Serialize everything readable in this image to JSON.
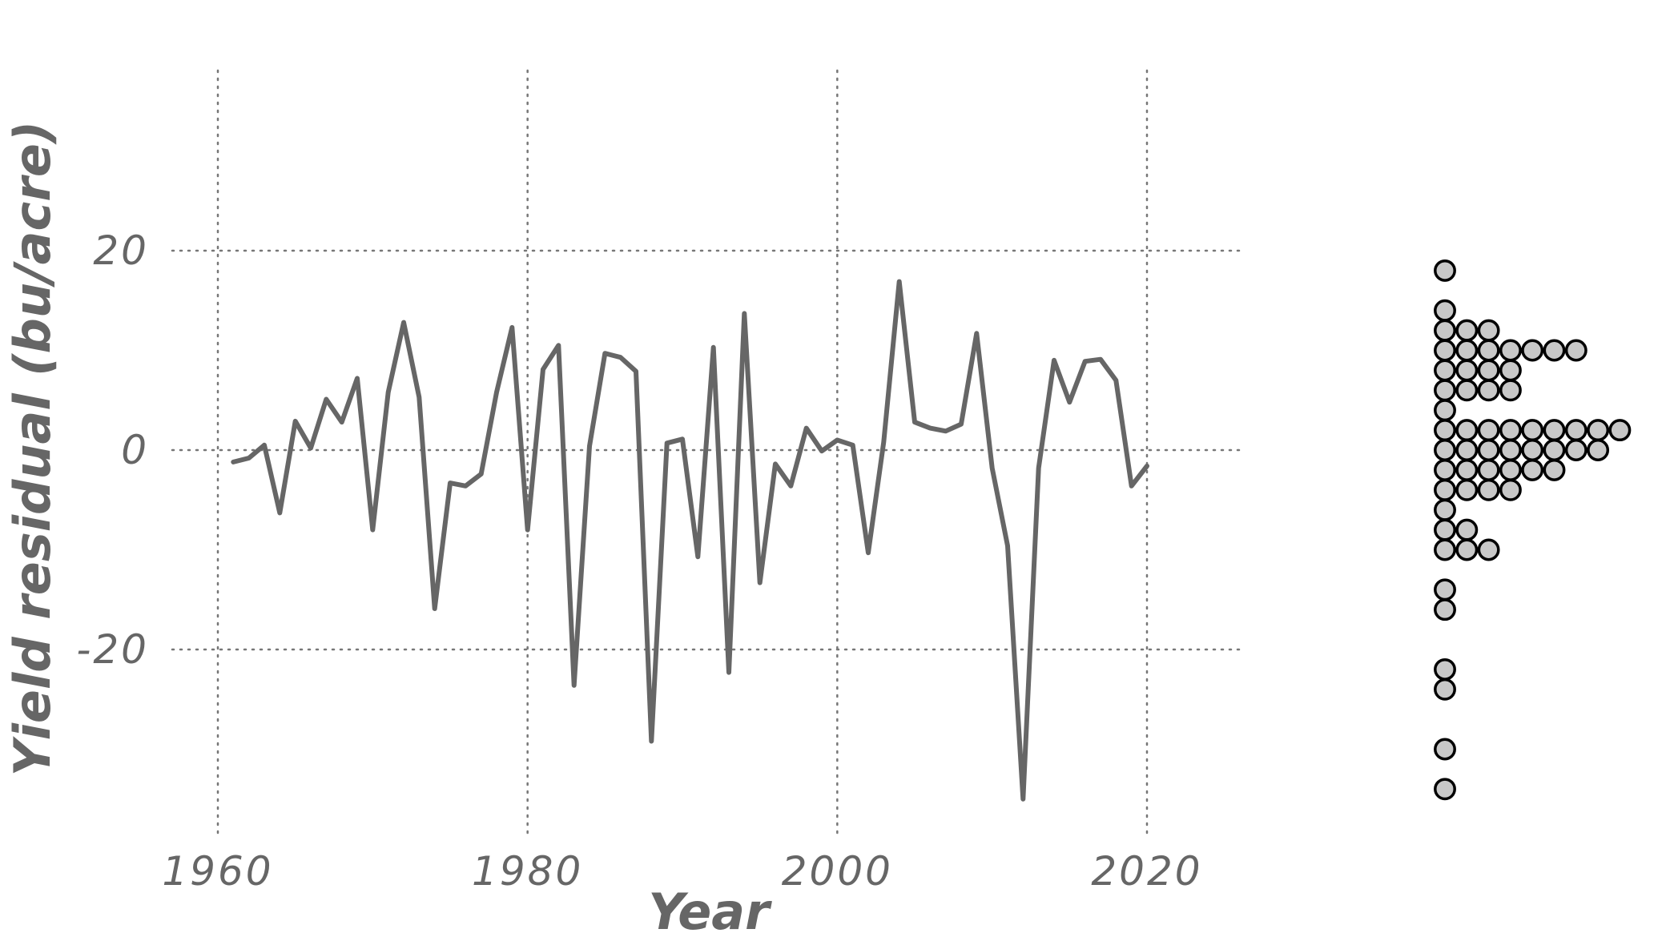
{
  "chart_data": [
    {
      "type": "line",
      "title": "",
      "xlabel": "Year",
      "ylabel": "Yield residual (bu/acre)",
      "xlim": [
        1960,
        2020
      ],
      "ylim": [
        -35,
        18
      ],
      "x_ticks": [
        1960,
        1980,
        2000,
        2020
      ],
      "y_ticks": [
        -20,
        0,
        20
      ],
      "x_tick_labels": [
        "1960",
        "1980",
        "2000",
        "2020"
      ],
      "y_tick_labels": [
        "-20",
        "0",
        "20"
      ],
      "grid": true,
      "grid_style": "dotted",
      "line_color": "#666666",
      "series": [
        {
          "x": [
            1961,
            1962,
            1963,
            1964,
            1965,
            1966,
            1967,
            1968,
            1969,
            1970,
            1971,
            1972,
            1973,
            1974,
            1975,
            1976,
            1977,
            1978,
            1979,
            1980,
            1981,
            1982,
            1983,
            1984,
            1985,
            1986,
            1987,
            1988,
            1989,
            1990,
            1991,
            1992,
            1993,
            1994,
            1995,
            1996,
            1997,
            1998,
            1999,
            2000,
            2001,
            2002,
            2003,
            2004,
            2005,
            2006,
            2007,
            2008,
            2009,
            2010,
            2011,
            2012,
            2013,
            2014,
            2015,
            2016,
            2017,
            2018,
            2019,
            2020
          ],
          "y": [
            -1.2,
            -0.8,
            0.5,
            -6.3,
            2.9,
            0.2,
            5.1,
            2.8,
            7.2,
            -8.0,
            5.8,
            12.8,
            5.3,
            -15.9,
            -3.3,
            -3.6,
            -2.4,
            5.8,
            12.3,
            -8.0,
            8.1,
            10.5,
            -23.6,
            0.4,
            9.7,
            9.3,
            7.9,
            -29.2,
            0.7,
            1.1,
            -10.7,
            10.3,
            -22.3,
            13.7,
            -13.3,
            -1.4,
            -3.6,
            2.2,
            -0.1,
            1.0,
            0.5,
            -10.3,
            0.8,
            16.9,
            2.8,
            2.2,
            1.9,
            2.6,
            11.7,
            -1.8,
            -9.6,
            -35.0,
            -1.8,
            9.0,
            4.8,
            8.9,
            9.1,
            7.0,
            -3.6,
            -1.6
          ]
        }
      ]
    },
    {
      "type": "dotplot",
      "orientation": "horizontal-stacks",
      "shares_y_axis": true,
      "ylim": [
        -35,
        18
      ],
      "bin_width": 2,
      "dot_fill": "#c8c8c8",
      "dot_stroke": "#000000",
      "bins": [
        {
          "y": 18,
          "count": 1
        },
        {
          "y": 14,
          "count": 1
        },
        {
          "y": 12,
          "count": 3
        },
        {
          "y": 10,
          "count": 7
        },
        {
          "y": 8,
          "count": 4
        },
        {
          "y": 6,
          "count": 4
        },
        {
          "y": 4,
          "count": 1
        },
        {
          "y": 2,
          "count": 9
        },
        {
          "y": 0,
          "count": 8
        },
        {
          "y": -2,
          "count": 6
        },
        {
          "y": -4,
          "count": 4
        },
        {
          "y": -6,
          "count": 1
        },
        {
          "y": -8,
          "count": 2
        },
        {
          "y": -10,
          "count": 3
        },
        {
          "y": -14,
          "count": 1
        },
        {
          "y": -16,
          "count": 1
        },
        {
          "y": -22,
          "count": 1
        },
        {
          "y": -24,
          "count": 1
        },
        {
          "y": -30,
          "count": 1
        },
        {
          "y": -34,
          "count": 1
        }
      ]
    }
  ]
}
